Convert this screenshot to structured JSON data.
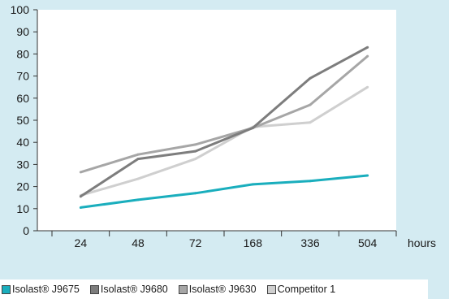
{
  "chart_data": {
    "type": "line",
    "categories": [
      "24",
      "48",
      "72",
      "168",
      "336",
      "504"
    ],
    "xlabel": "hours",
    "ylabel": "",
    "ylim": [
      0,
      100
    ],
    "yticks": [
      0,
      10,
      20,
      30,
      40,
      50,
      60,
      70,
      80,
      90,
      100
    ],
    "grid": false,
    "legend_position": "bottom",
    "series": [
      {
        "name": "Isolast® J9675",
        "color": "#1aaebd",
        "values": [
          10.5,
          14,
          17,
          21,
          22.5,
          25
        ]
      },
      {
        "name": "Isolast® J9680",
        "color": "#7d7d7d",
        "values": [
          15.5,
          32.5,
          36,
          46.5,
          69,
          83
        ]
      },
      {
        "name": "Isolast® J9630",
        "color": "#a6a6a6",
        "values": [
          26.5,
          34.5,
          39,
          46.5,
          57,
          79
        ]
      },
      {
        "name": "Competitor 1",
        "color": "#cfcfcf",
        "values": [
          16,
          23.5,
          32.5,
          47,
          49,
          65
        ]
      }
    ]
  }
}
